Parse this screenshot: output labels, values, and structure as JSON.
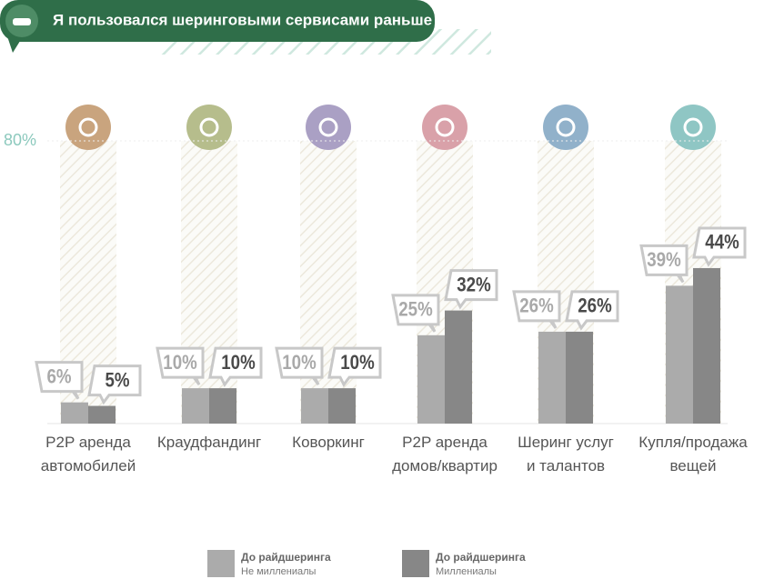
{
  "chart_data": {
    "type": "bar",
    "title": "Я пользовался шеринговыми сервисами раньше",
    "categories": [
      [
        "P2P аренда",
        "автомобилей"
      ],
      [
        "Краудфандинг"
      ],
      [
        "Коворкинг"
      ],
      [
        "P2P аренда",
        "домов/квартир"
      ],
      [
        "Шеринг услуг",
        "и талантов"
      ],
      [
        "Купля/продажа",
        "вещей"
      ]
    ],
    "series": [
      {
        "name": "До райдшеринга",
        "sublabel": "Не миллениалы",
        "color": "#ababab",
        "label_color": "#a9a9a9",
        "values": [
          6,
          10,
          10,
          25,
          26,
          39
        ],
        "value_labels": [
          "6%",
          "10%",
          "10%",
          "25%",
          "26%",
          "39%"
        ]
      },
      {
        "name": "До райдшеринга",
        "sublabel": "Миллениалы",
        "color": "#878787",
        "label_color": "#4a4a4a",
        "values": [
          5,
          10,
          10,
          32,
          26,
          44
        ],
        "value_labels": [
          "5%",
          "10%",
          "10%",
          "32%",
          "26%",
          "44%"
        ]
      }
    ],
    "icon_colors": [
      "#c9a47e",
      "#b6bd8c",
      "#aaa0c4",
      "#d9a1a9",
      "#91b1ca",
      "#8fc6c4"
    ],
    "ylim": [
      0,
      80
    ],
    "yticks": [
      {
        "value": 80,
        "label": "80%"
      }
    ],
    "grid": true
  }
}
